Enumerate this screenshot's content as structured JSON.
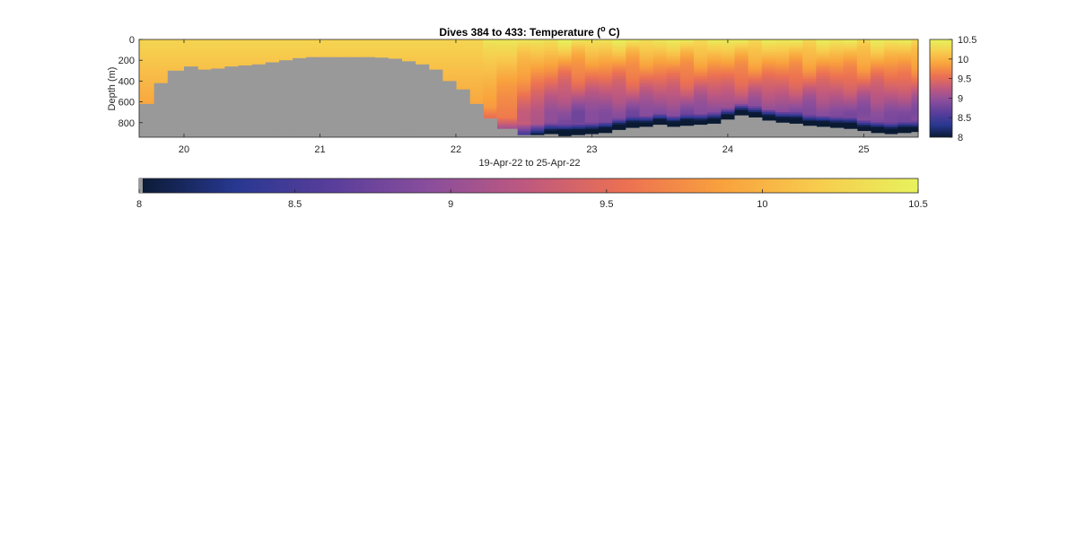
{
  "chart_data": [
    {
      "type": "heatmap",
      "title": {
        "main": "Dives 384 to 433: Temperature (",
        "unit_sup": "o",
        "unit_tail": " C)"
      },
      "xlabel": "19-Apr-22 to 25-Apr-22",
      "ylabel": "Depth (m)",
      "xlim": [
        19.67,
        25.4
      ],
      "ylim": [
        0,
        940
      ],
      "y_reversed": true,
      "x_ticks": [
        20,
        21,
        22,
        23,
        24,
        25
      ],
      "x_tick_labels": [
        "20",
        "21",
        "22",
        "23",
        "24",
        "25"
      ],
      "y_ticks": [
        0,
        200,
        400,
        600,
        800
      ],
      "y_tick_labels": [
        "0",
        "200",
        "400",
        "600",
        "800"
      ],
      "color_range": [
        8,
        10.5
      ],
      "colormap": [
        "#0a1a33",
        "#283891",
        "#5a3e9b",
        "#8b4e9c",
        "#c0597e",
        "#ec7152",
        "#f9a23d",
        "#f7cd4e",
        "#e7f25c"
      ],
      "no_data_color": "#999999",
      "data_region": {
        "x": [
          19.67,
          19.78,
          19.88,
          20.0,
          20.1,
          20.2,
          20.3,
          20.4,
          20.5,
          20.6,
          20.7,
          20.8,
          20.9,
          21.0,
          21.1,
          21.2,
          21.3,
          21.4,
          21.5,
          21.6,
          21.7,
          21.8,
          21.9,
          22.0,
          22.1,
          22.2,
          22.3,
          22.45,
          22.55,
          22.65,
          22.75,
          22.85,
          22.95,
          23.05,
          23.15,
          23.25,
          23.35,
          23.45,
          23.55,
          23.65,
          23.75,
          23.85,
          23.95,
          24.05,
          24.15,
          24.25,
          24.35,
          24.45,
          24.55,
          24.65,
          24.75,
          24.85,
          24.95,
          25.05,
          25.15,
          25.25,
          25.35
        ],
        "max_depth": [
          620,
          420,
          300,
          260,
          290,
          280,
          260,
          250,
          240,
          220,
          200,
          180,
          170,
          170,
          170,
          170,
          170,
          175,
          185,
          210,
          240,
          290,
          400,
          480,
          620,
          760,
          860,
          920,
          920,
          910,
          930,
          920,
          910,
          900,
          870,
          850,
          840,
          820,
          840,
          830,
          820,
          810,
          770,
          730,
          750,
          780,
          800,
          810,
          830,
          840,
          850,
          860,
          880,
          900,
          910,
          900,
          890
        ]
      },
      "colorbar_ticks": [
        "10.5",
        "10",
        "9.5",
        "9",
        "8.5",
        "8"
      ]
    },
    {
      "type": "colorbar",
      "color_range": [
        8,
        10.5
      ],
      "ticks": [
        "8",
        "8.5",
        "9",
        "9.5",
        "10",
        "10.5"
      ]
    }
  ]
}
